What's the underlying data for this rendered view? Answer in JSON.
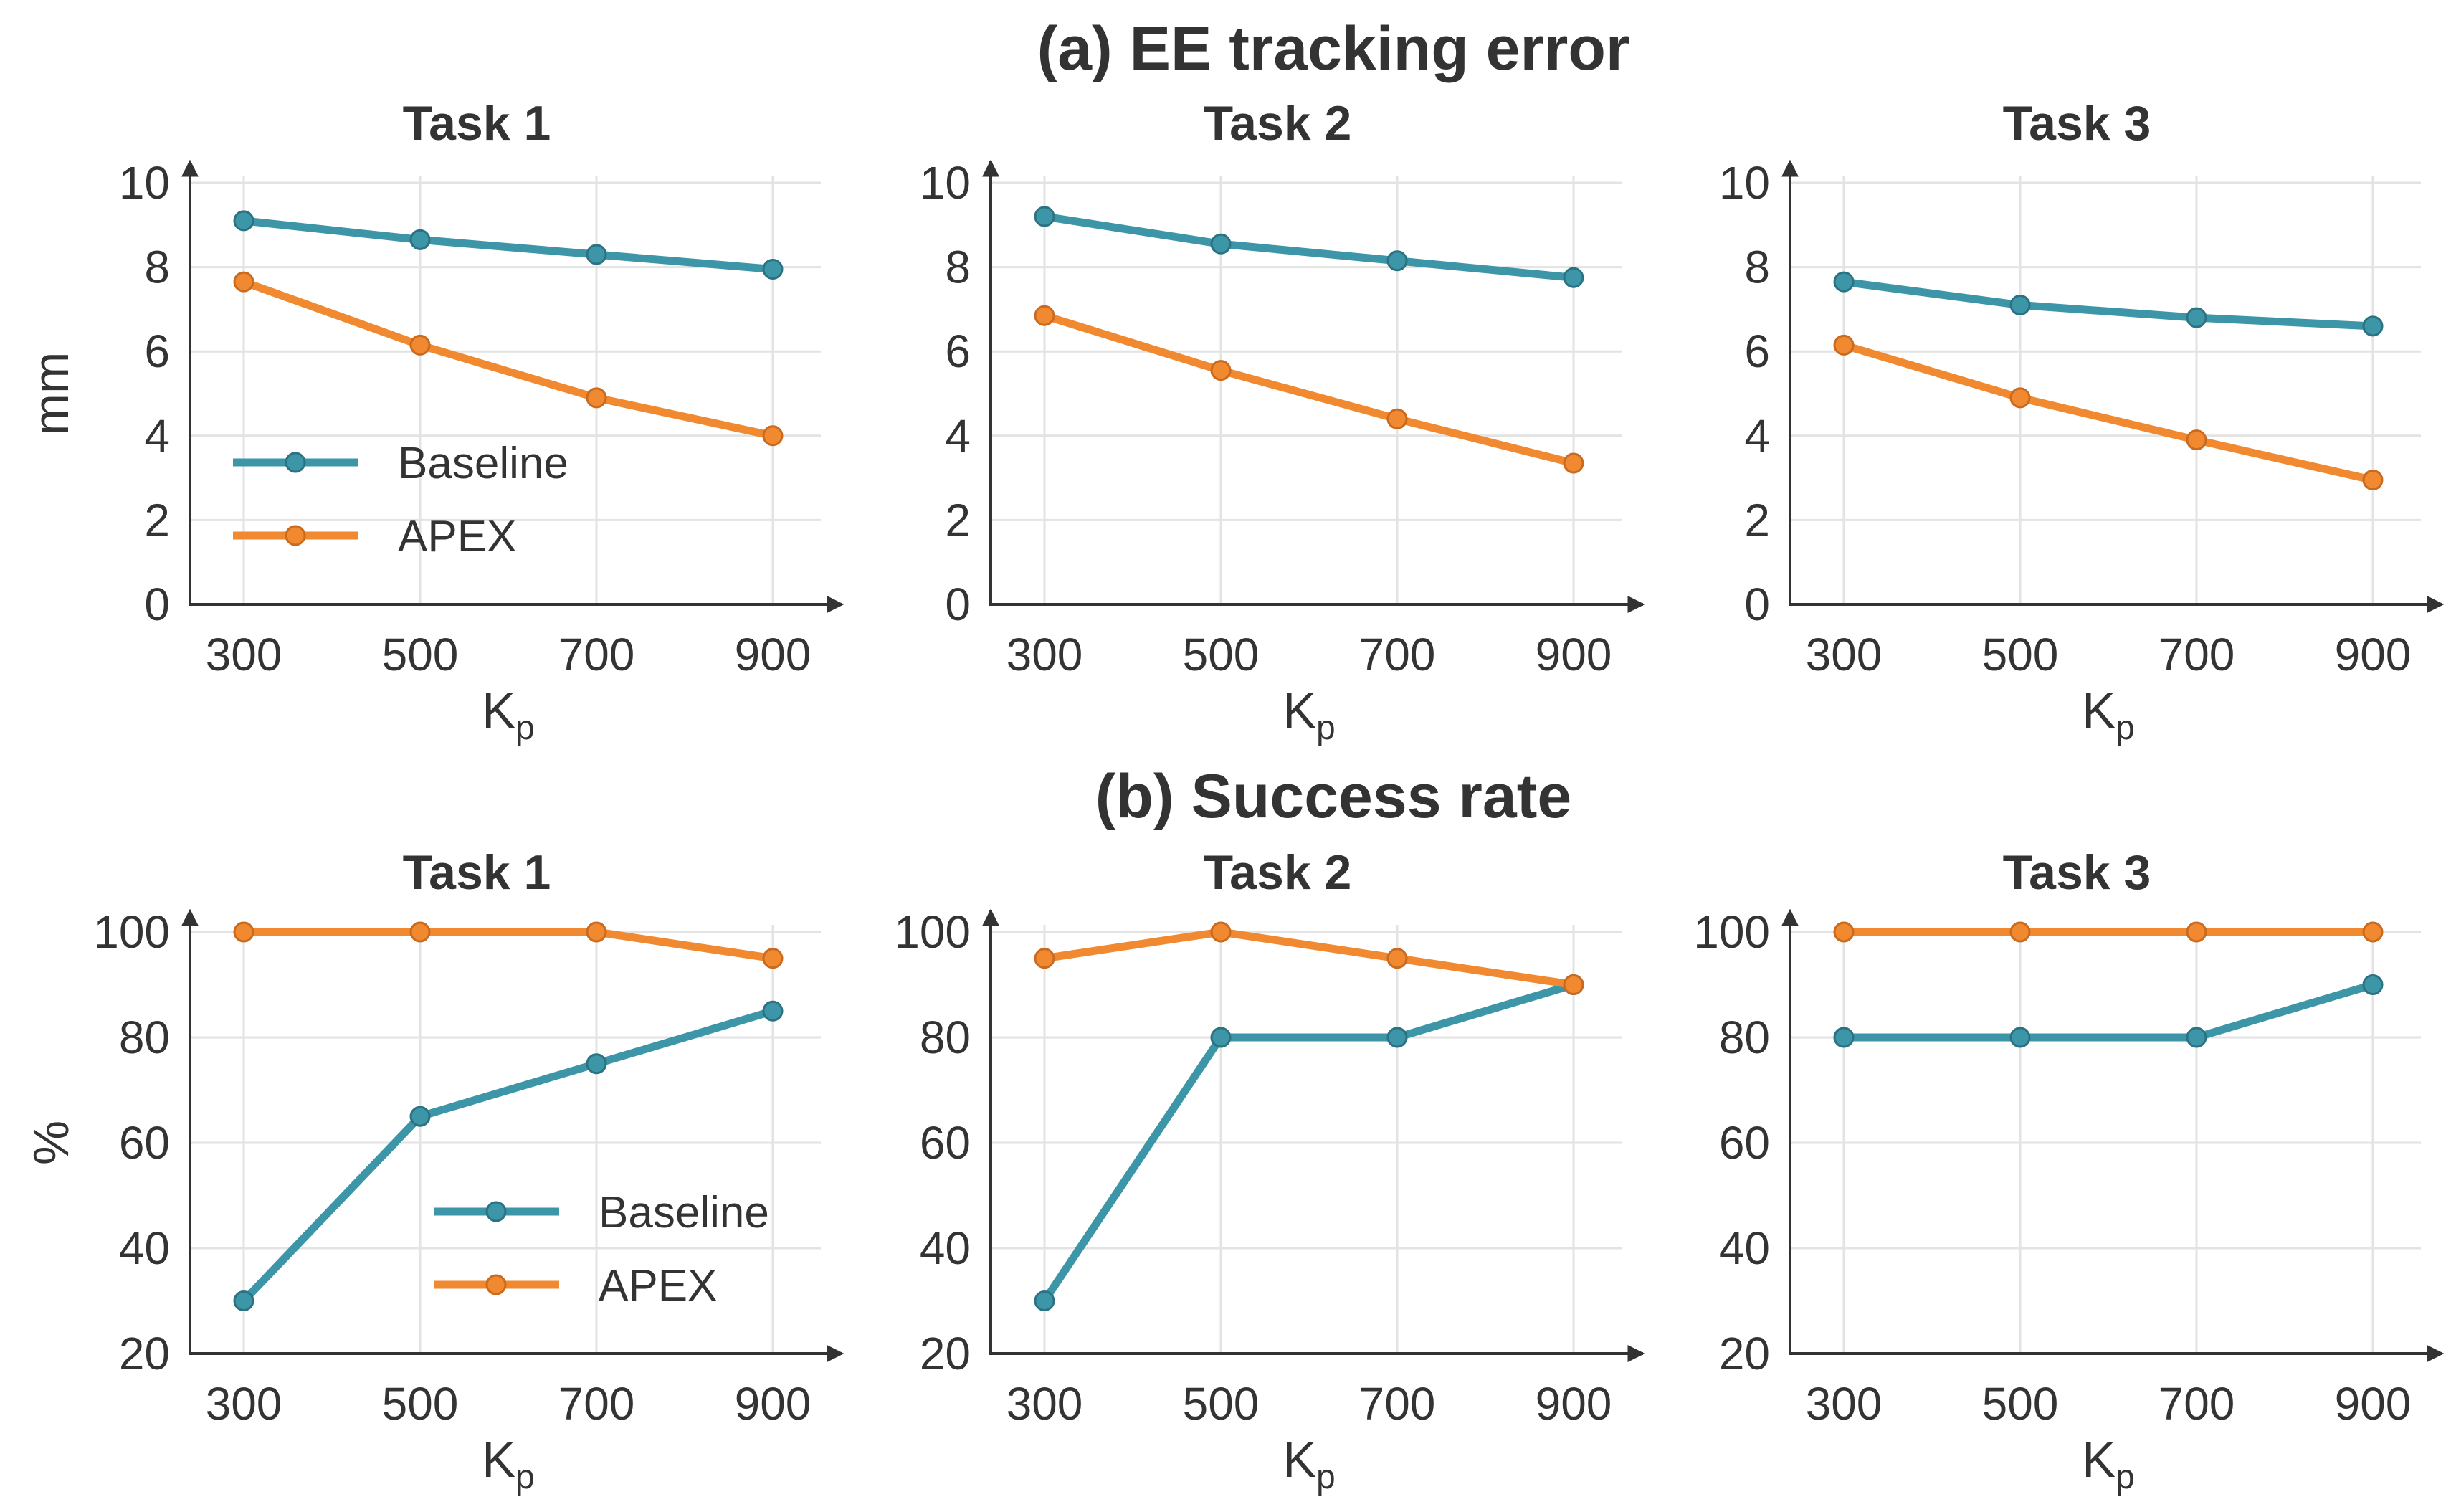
{
  "colors": {
    "baseline": "#3d96a8",
    "apex": "#f0892f",
    "baseline_edge": "#2b7282",
    "apex_edge": "#c96a1f"
  },
  "rows": [
    {
      "title": "(a) EE tracking error",
      "ylabel": "mm"
    },
    {
      "title": "(b) Success rate",
      "ylabel": "%"
    }
  ],
  "chart_data": [
    {
      "type": "line",
      "row": 0,
      "title": "Task 1",
      "xlabel": "K",
      "xlabel_sub": "p",
      "ylabel": "mm",
      "x": [
        300,
        500,
        700,
        900
      ],
      "xticks": [
        "300",
        "500",
        "700",
        "900"
      ],
      "ylim": [
        0,
        10
      ],
      "yticks": [
        0,
        2,
        4,
        6,
        8,
        10
      ],
      "grid": true,
      "legend": "center-left",
      "series": [
        {
          "name": "Baseline",
          "values": [
            9.1,
            8.65,
            8.3,
            7.95
          ]
        },
        {
          "name": "APEX",
          "values": [
            7.65,
            6.15,
            4.9,
            4.0
          ]
        }
      ]
    },
    {
      "type": "line",
      "row": 0,
      "title": "Task 2",
      "xlabel": "K",
      "xlabel_sub": "p",
      "ylabel": "",
      "x": [
        300,
        500,
        700,
        900
      ],
      "xticks": [
        "300",
        "500",
        "700",
        "900"
      ],
      "ylim": [
        0,
        10
      ],
      "yticks": [
        0,
        2,
        4,
        6,
        8,
        10
      ],
      "grid": true,
      "legend": "",
      "series": [
        {
          "name": "Baseline",
          "values": [
            9.2,
            8.55,
            8.15,
            7.75
          ]
        },
        {
          "name": "APEX",
          "values": [
            6.85,
            5.55,
            4.4,
            3.35
          ]
        }
      ]
    },
    {
      "type": "line",
      "row": 0,
      "title": "Task 3",
      "xlabel": "K",
      "xlabel_sub": "p",
      "ylabel": "",
      "x": [
        300,
        500,
        700,
        900
      ],
      "xticks": [
        "300",
        "500",
        "700",
        "900"
      ],
      "ylim": [
        0,
        10
      ],
      "yticks": [
        0,
        2,
        4,
        6,
        8,
        10
      ],
      "grid": true,
      "legend": "",
      "series": [
        {
          "name": "Baseline",
          "values": [
            7.65,
            7.1,
            6.8,
            6.6
          ]
        },
        {
          "name": "APEX",
          "values": [
            6.15,
            4.9,
            3.9,
            2.95
          ]
        }
      ]
    },
    {
      "type": "line",
      "row": 1,
      "title": "Task 1",
      "xlabel": "K",
      "xlabel_sub": "p",
      "ylabel": "%",
      "x": [
        300,
        500,
        700,
        900
      ],
      "xticks": [
        "300",
        "500",
        "700",
        "900"
      ],
      "ylim": [
        20,
        100
      ],
      "yticks": [
        20,
        40,
        60,
        80,
        100
      ],
      "grid": true,
      "legend": "lower-right",
      "series": [
        {
          "name": "Baseline",
          "values": [
            30,
            65,
            75,
            85
          ]
        },
        {
          "name": "APEX",
          "values": [
            100,
            100,
            100,
            95
          ]
        }
      ]
    },
    {
      "type": "line",
      "row": 1,
      "title": "Task 2",
      "xlabel": "K",
      "xlabel_sub": "p",
      "ylabel": "",
      "x": [
        300,
        500,
        700,
        900
      ],
      "xticks": [
        "300",
        "500",
        "700",
        "900"
      ],
      "ylim": [
        20,
        100
      ],
      "yticks": [
        20,
        40,
        60,
        80,
        100
      ],
      "grid": true,
      "legend": "",
      "series": [
        {
          "name": "Baseline",
          "values": [
            30,
            80,
            80,
            90
          ]
        },
        {
          "name": "APEX",
          "values": [
            95,
            100,
            95,
            90
          ]
        }
      ]
    },
    {
      "type": "line",
      "row": 1,
      "title": "Task 3",
      "xlabel": "K",
      "xlabel_sub": "p",
      "ylabel": "",
      "x": [
        300,
        500,
        700,
        900
      ],
      "xticks": [
        "300",
        "500",
        "700",
        "900"
      ],
      "ylim": [
        20,
        100
      ],
      "yticks": [
        20,
        40,
        60,
        80,
        100
      ],
      "grid": true,
      "legend": "",
      "series": [
        {
          "name": "Baseline",
          "values": [
            80,
            80,
            80,
            90
          ]
        },
        {
          "name": "APEX",
          "values": [
            100,
            100,
            100,
            100
          ]
        }
      ]
    }
  ]
}
